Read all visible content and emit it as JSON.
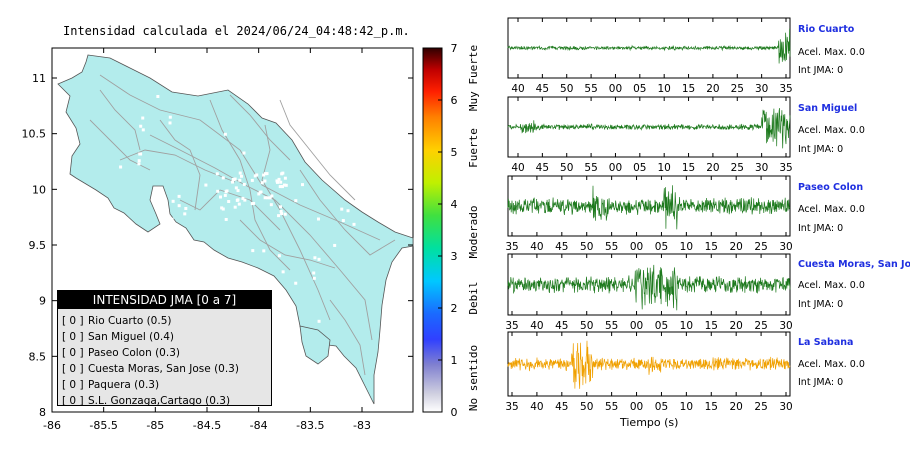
{
  "map": {
    "title": "Intensidad calculada el 2024/06/24_04:48:42_p.m.",
    "y_ticks": [
      "11",
      "10.5",
      "10",
      "9.5",
      "9",
      "8.5",
      "8"
    ],
    "x_ticks": [
      "-86",
      "-85.5",
      "-85",
      "-84.5",
      "-84",
      "-83.5",
      "-83"
    ],
    "land_color": "#b3ecec",
    "road_color": "#a0a0a0"
  },
  "colorbar": {
    "ticks": [
      "7",
      "6",
      "5",
      "4",
      "3",
      "2",
      "1",
      "0"
    ],
    "category_labels": [
      "Muy Fuerte",
      "Fuerte",
      "Moderado",
      "Debil",
      "No sentido"
    ]
  },
  "legend": {
    "title": "INTENSIDAD JMA [0 a 7]",
    "items": [
      {
        "bracket": "[ 0 ]",
        "label": "Rio Cuarto (0.5)"
      },
      {
        "bracket": "[ 0 ]",
        "label": "San Miguel (0.4)"
      },
      {
        "bracket": "[ 0 ]",
        "label": "Paseo Colon (0.3)"
      },
      {
        "bracket": "[ 0 ]",
        "label": "Cuesta Moras, San Jose (0.3)"
      },
      {
        "bracket": "[ 0 ]",
        "label": "Paquera (0.3)"
      },
      {
        "bracket": "[ 0 ]",
        "label": "S.L. Gonzaga,Cartago (0.3)"
      }
    ]
  },
  "stations": [
    {
      "name": "Rio Cuarto",
      "acel": "Acel. Max. 0.0",
      "int": "Int JMA: 0",
      "color": "#1e7a1e",
      "ticks": [
        "40",
        "45",
        "50",
        "55",
        "00",
        "05",
        "10",
        "15",
        "20",
        "25",
        "30",
        "35"
      ]
    },
    {
      "name": "San Miguel",
      "acel": "Acel. Max. 0.0",
      "int": "Int JMA: 0",
      "color": "#1e7a1e",
      "ticks": [
        "40",
        "45",
        "50",
        "55",
        "00",
        "05",
        "10",
        "15",
        "20",
        "25",
        "30",
        "35"
      ]
    },
    {
      "name": "Paseo Colon",
      "acel": "Acel. Max. 0.0",
      "int": "Int JMA: 0",
      "color": "#1e7a1e",
      "ticks": [
        "35",
        "40",
        "45",
        "50",
        "55",
        "00",
        "05",
        "10",
        "15",
        "20",
        "25",
        "30"
      ]
    },
    {
      "name": "Cuesta Moras, San Jose",
      "acel": "Acel. Max. 0.0",
      "int": "Int JMA: 0",
      "color": "#1e7a1e",
      "ticks": [
        "35",
        "40",
        "45",
        "50",
        "55",
        "00",
        "05",
        "10",
        "15",
        "20",
        "25",
        "30"
      ]
    },
    {
      "name": "La Sabana",
      "acel": "Acel. Max. 0.0",
      "int": "Int JMA: 0",
      "color": "#f0a000",
      "ticks": [
        "35",
        "40",
        "45",
        "50",
        "55",
        "00",
        "05",
        "10",
        "15",
        "20",
        "25",
        "30"
      ]
    }
  ],
  "xaxis_title": "Tiempo (s)"
}
